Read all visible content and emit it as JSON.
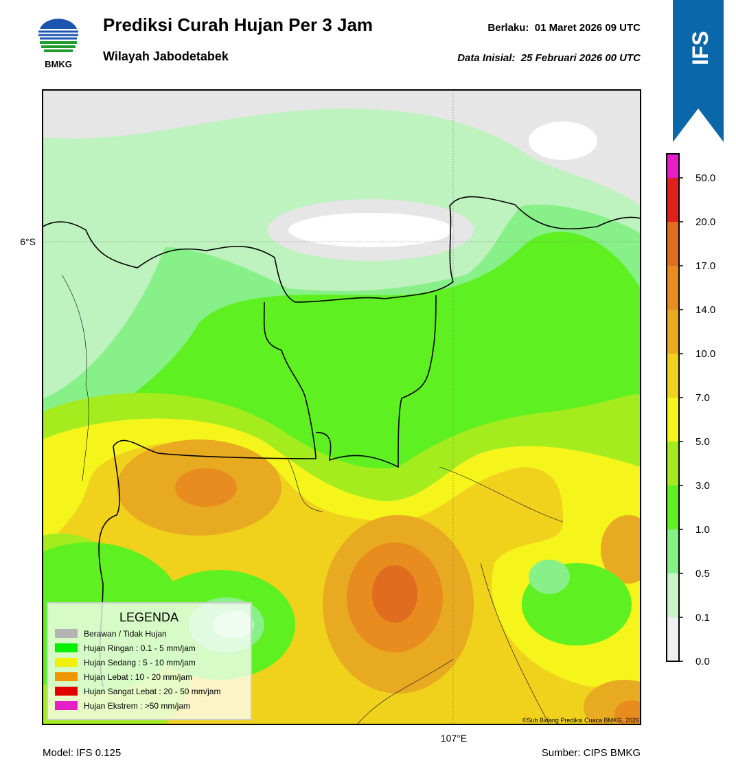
{
  "logo": {
    "text": "BMKG"
  },
  "header": {
    "title": "Prediksi Curah Hujan Per 3 Jam",
    "subtitle": "Wilayah Jabodetabek",
    "valid": "Berlaku:  01 Maret 2026 09 UTC",
    "init": "Data Inisial:  25 Februari 2026 00 UTC"
  },
  "badge": "IFS",
  "map": {
    "lat_label": "6°S",
    "lon_label": "107°E",
    "credit": "©Sub Bidang Prediksi Cuaca BMKG, 2026"
  },
  "legend": {
    "title": "LEGENDA",
    "items": [
      {
        "label": "Berawan / Tidak Hujan",
        "color": "#b4b4b4"
      },
      {
        "label": "Hujan Ringan : 0.1 - 5 mm/jam",
        "color": "#00f000"
      },
      {
        "label": "Hujan Sedang : 5 - 10 mm/jam",
        "color": "#f0f000"
      },
      {
        "label": "Hujan Lebat : 10 - 20 mm/jam",
        "color": "#f09600"
      },
      {
        "label": "Hujan Sangat Lebat : 20 - 50 mm/jam",
        "color": "#e00000"
      },
      {
        "label": "Hujan Ekstrem : >50 mm/jam",
        "color": "#e61ec8"
      }
    ]
  },
  "colorbar": {
    "ticks": [
      "0.0",
      "0.1",
      "0.5",
      "1.0",
      "3.0",
      "5.0",
      "7.0",
      "10.0",
      "14.0",
      "17.0",
      "20.0",
      "50.0"
    ],
    "colors": [
      "#f0f0f0",
      "#c8f5c8",
      "#88f088",
      "#5ef020",
      "#a4ec1e",
      "#f5f51c",
      "#f0d21c",
      "#e8aa20",
      "#e88c20",
      "#e06c20",
      "#e0201c",
      "#e61ec8"
    ]
  },
  "footer": {
    "model": "Model: IFS 0.125",
    "source": "Sumber: CIPS BMKG"
  }
}
